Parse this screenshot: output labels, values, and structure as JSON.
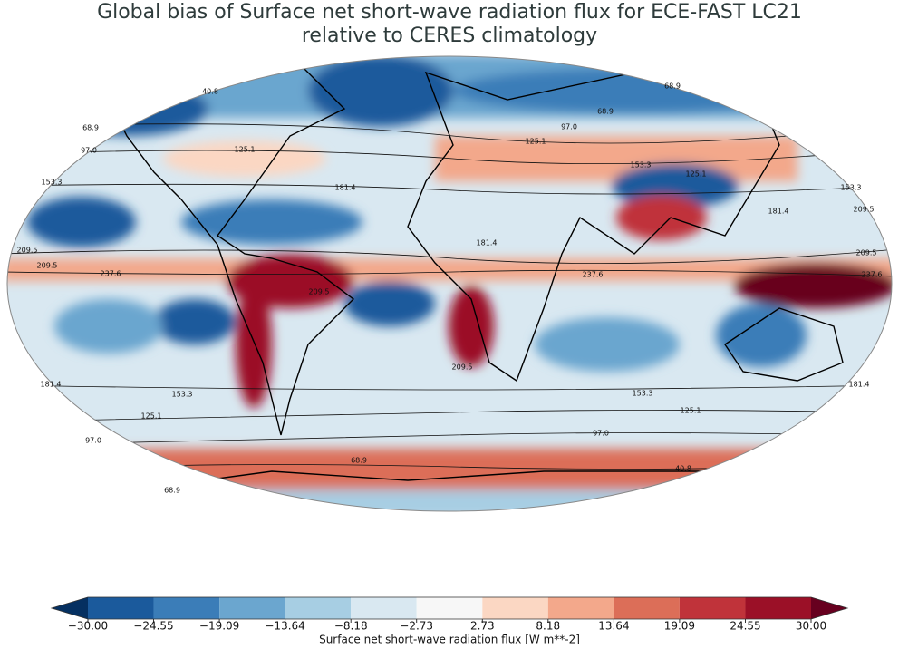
{
  "title": [
    "Global bias of Surface net short-wave radiation flux for ECE-FAST LC21",
    "relative to CERES climatology"
  ],
  "contour_labels": [
    "40.8",
    "68.9",
    "97.0",
    "153.3",
    "209.5",
    "209.5",
    "237.6",
    "125.1",
    "181.4",
    "97.0",
    "68.9",
    "68.9",
    "125.1",
    "153.3",
    "125.1",
    "153.3",
    "209.5",
    "209.5",
    "237.6",
    "181.4",
    "181.4",
    "237.6",
    "209.5",
    "209.5",
    "181.4",
    "153.3",
    "125.1",
    "97.0",
    "153.3",
    "125.1",
    "97.0",
    "68.9",
    "68.9",
    "40.8",
    "181.4"
  ],
  "colorbar": {
    "label": "Surface net short-wave radiation flux [W m**-2]",
    "under_color": "#053061",
    "over_color": "#67001f",
    "colors": [
      "#1b5a9c",
      "#3b7db8",
      "#6ba6cf",
      "#a7cee3",
      "#d9e8f1",
      "#f7f7f7",
      "#fbd7c3",
      "#f3a88b",
      "#dc6e58",
      "#c0333a",
      "#9b1027"
    ],
    "ticks": [
      {
        "value": -30,
        "label": "−30.00"
      },
      {
        "value": -24.55,
        "label": "−24.55"
      },
      {
        "value": -19.09,
        "label": "−19.09"
      },
      {
        "value": -13.64,
        "label": "−13.64"
      },
      {
        "value": -8.18,
        "label": "−8.18"
      },
      {
        "value": -2.73,
        "label": "−2.73"
      },
      {
        "value": 2.73,
        "label": "2.73"
      },
      {
        "value": 8.18,
        "label": "8.18"
      },
      {
        "value": 13.64,
        "label": "13.64"
      },
      {
        "value": 19.09,
        "label": "19.09"
      },
      {
        "value": 24.55,
        "label": "24.55"
      },
      {
        "value": 30,
        "label": "30.00"
      }
    ]
  }
}
